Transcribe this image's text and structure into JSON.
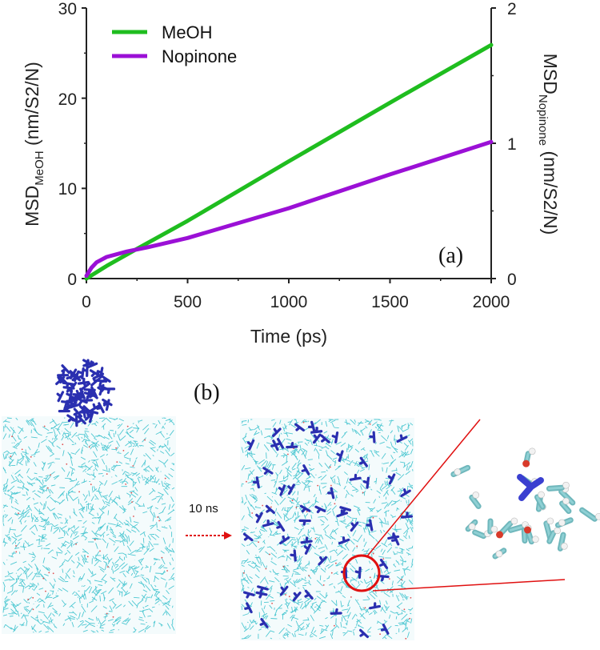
{
  "chart_data": {
    "type": "line",
    "xlabel": "Time (ps)",
    "ylabel_left": {
      "main": "MSD",
      "sub": "MeOH",
      "unit": " (nm/S2/N)"
    },
    "ylabel_right": {
      "main": "MSD",
      "sub": "Nopinone",
      "unit": " (nm/S2/N)"
    },
    "xlim": [
      0,
      2000
    ],
    "ylim_left": [
      0,
      30
    ],
    "ylim_right": [
      0,
      2
    ],
    "x_ticks": [
      "0",
      "500",
      "1000",
      "1500",
      "2000"
    ],
    "y_ticks_left": [
      "0",
      "10",
      "20",
      "30"
    ],
    "y_ticks_right": [
      "0",
      "1",
      "2"
    ],
    "series": [
      {
        "name": "MeOH",
        "axis": "left",
        "color": "#1fbd1f",
        "x": [
          0,
          100,
          250,
          500,
          1000,
          1500,
          2000
        ],
        "values": [
          0,
          1.4,
          3.3,
          6.4,
          13.0,
          19.5,
          25.9
        ]
      },
      {
        "name": "Nopinone",
        "axis": "right",
        "color": "#9b10d6",
        "x": [
          0,
          25,
          50,
          100,
          200,
          300,
          500,
          1000,
          1500,
          2000
        ],
        "values": [
          0.02,
          0.08,
          0.12,
          0.16,
          0.2,
          0.23,
          0.3,
          0.52,
          0.77,
          1.01
        ]
      }
    ],
    "legend": "top-left",
    "panel_label": "(a)"
  },
  "panel_b_label": "(b)",
  "arrow_label": "10 ns",
  "colors": {
    "methanol": "#4fc8d2",
    "nopinone": "#2a2fb0",
    "highlight": "#e01010"
  }
}
